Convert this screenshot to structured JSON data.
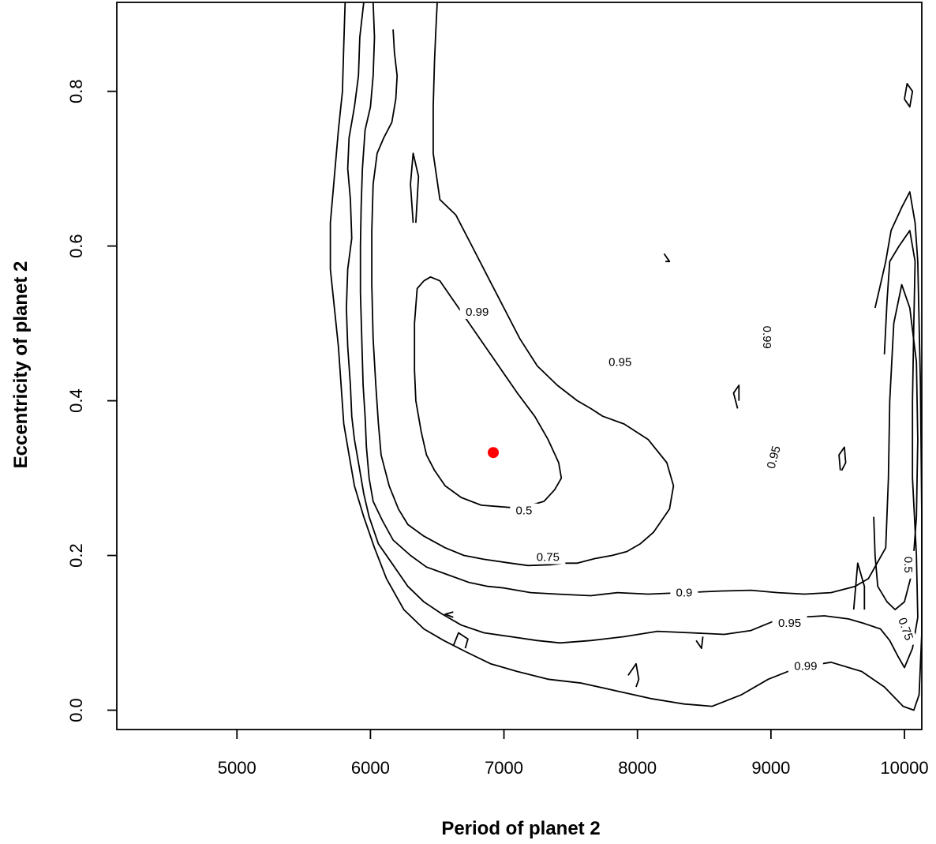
{
  "chart_data": {
    "type": "contour",
    "title": "",
    "xlabel": "Period of planet 2",
    "ylabel": "Eccentricity of planet 2",
    "xlim": [
      4100,
      10130
    ],
    "ylim": [
      -0.025,
      0.915
    ],
    "x_ticks": [
      5000,
      6000,
      7000,
      8000,
      9000,
      10000
    ],
    "x_tick_labels": [
      "5000",
      "6000",
      "7000",
      "8000",
      "9000",
      "10000"
    ],
    "y_ticks": [
      0.0,
      0.2,
      0.4,
      0.6,
      0.8
    ],
    "y_tick_labels": [
      "0.0",
      "0.2",
      "0.4",
      "0.6",
      "0.8"
    ],
    "grid": false,
    "levels": [
      0.5,
      0.75,
      0.9,
      0.95,
      0.99
    ],
    "level_labels": [
      "0.5",
      "0.75",
      "0.9",
      "0.95",
      "0.99"
    ],
    "best_fit_point": {
      "x": 6920,
      "y": 0.333,
      "color": "#ff0000"
    },
    "contour_line_color": "#000000",
    "contour_lines": [
      {
        "level": 0.5,
        "points": [
          [
            6400,
            0.555
          ],
          [
            6350,
            0.545
          ],
          [
            6330,
            0.5
          ],
          [
            6330,
            0.44
          ],
          [
            6340,
            0.4
          ],
          [
            6380,
            0.36
          ],
          [
            6420,
            0.33
          ],
          [
            6480,
            0.31
          ],
          [
            6560,
            0.29
          ],
          [
            6680,
            0.275
          ],
          [
            6830,
            0.265
          ],
          [
            7050,
            0.262
          ],
          [
            7200,
            0.265
          ],
          [
            7300,
            0.27
          ],
          [
            7380,
            0.285
          ],
          [
            7430,
            0.3
          ],
          [
            7410,
            0.32
          ],
          [
            7330,
            0.35
          ],
          [
            7230,
            0.38
          ],
          [
            7100,
            0.41
          ],
          [
            6980,
            0.44
          ],
          [
            6860,
            0.47
          ],
          [
            6740,
            0.5
          ],
          [
            6620,
            0.53
          ],
          [
            6520,
            0.555
          ],
          [
            6450,
            0.56
          ],
          [
            6400,
            0.555
          ]
        ]
      },
      {
        "level": 0.75,
        "points": [
          [
            6170,
            0.88
          ],
          [
            6180,
            0.85
          ],
          [
            6200,
            0.82
          ],
          [
            6190,
            0.79
          ],
          [
            6160,
            0.76
          ],
          [
            6100,
            0.74
          ],
          [
            6050,
            0.72
          ],
          [
            6020,
            0.68
          ],
          [
            6010,
            0.62
          ],
          [
            6010,
            0.55
          ],
          [
            6020,
            0.48
          ],
          [
            6040,
            0.42
          ],
          [
            6060,
            0.37
          ],
          [
            6080,
            0.33
          ],
          [
            6140,
            0.29
          ],
          [
            6210,
            0.26
          ],
          [
            6280,
            0.24
          ],
          [
            6400,
            0.225
          ],
          [
            6560,
            0.21
          ],
          [
            6700,
            0.2
          ],
          [
            6850,
            0.195
          ],
          [
            7050,
            0.19
          ],
          [
            7180,
            0.187
          ],
          [
            7350,
            0.188
          ],
          [
            7450,
            0.19
          ],
          [
            7550,
            0.19
          ],
          [
            7680,
            0.196
          ],
          [
            7810,
            0.2
          ],
          [
            7920,
            0.205
          ],
          [
            8020,
            0.215
          ],
          [
            8120,
            0.23
          ],
          [
            8240,
            0.26
          ],
          [
            8270,
            0.29
          ],
          [
            8220,
            0.32
          ],
          [
            8080,
            0.35
          ],
          [
            7900,
            0.37
          ],
          [
            7740,
            0.38
          ],
          [
            7650,
            0.39
          ],
          [
            7550,
            0.4
          ],
          [
            7400,
            0.42
          ],
          [
            7250,
            0.445
          ],
          [
            7120,
            0.48
          ],
          [
            7000,
            0.52
          ],
          [
            6880,
            0.56
          ],
          [
            6760,
            0.6
          ],
          [
            6640,
            0.64
          ],
          [
            6520,
            0.66
          ],
          [
            6470,
            0.72
          ],
          [
            6470,
            0.78
          ],
          [
            6480,
            0.84
          ],
          [
            6490,
            0.88
          ],
          [
            6500,
            0.915
          ]
        ]
      },
      {
        "level": 0.9,
        "points": [
          [
            6020,
            0.915
          ],
          [
            6030,
            0.87
          ],
          [
            6020,
            0.82
          ],
          [
            6000,
            0.78
          ],
          [
            5960,
            0.75
          ],
          [
            5940,
            0.7
          ],
          [
            5930,
            0.65
          ],
          [
            5925,
            0.6
          ],
          [
            5925,
            0.54
          ],
          [
            5935,
            0.48
          ],
          [
            5945,
            0.42
          ],
          [
            5960,
            0.38
          ],
          [
            5970,
            0.34
          ],
          [
            5990,
            0.3
          ],
          [
            6020,
            0.27
          ],
          [
            6090,
            0.245
          ],
          [
            6170,
            0.22
          ],
          [
            6300,
            0.2
          ],
          [
            6420,
            0.185
          ],
          [
            6580,
            0.175
          ],
          [
            6740,
            0.165
          ],
          [
            6880,
            0.16
          ],
          [
            7000,
            0.158
          ],
          [
            7200,
            0.152
          ],
          [
            7400,
            0.15
          ],
          [
            7650,
            0.148
          ],
          [
            7850,
            0.152
          ],
          [
            8080,
            0.15
          ],
          [
            8350,
            0.152
          ],
          [
            8620,
            0.154
          ],
          [
            8850,
            0.155
          ],
          [
            9050,
            0.152
          ],
          [
            9250,
            0.15
          ],
          [
            9450,
            0.152
          ],
          [
            9630,
            0.16
          ],
          [
            9730,
            0.17
          ],
          [
            9860,
            0.21
          ],
          [
            9880,
            0.3
          ],
          [
            9890,
            0.4
          ],
          [
            9920,
            0.5
          ],
          [
            9980,
            0.55
          ],
          [
            10040,
            0.52
          ],
          [
            10090,
            0.45
          ],
          [
            10100,
            0.35
          ],
          [
            10090,
            0.25
          ],
          [
            10060,
            0.18
          ],
          [
            10000,
            0.14
          ],
          [
            9930,
            0.13
          ],
          [
            9870,
            0.14
          ],
          [
            9800,
            0.16
          ],
          [
            9780,
            0.2
          ],
          [
            9770,
            0.25
          ]
        ]
      },
      {
        "level": 0.95,
        "points": [
          [
            5950,
            0.915
          ],
          [
            5920,
            0.87
          ],
          [
            5910,
            0.82
          ],
          [
            5880,
            0.78
          ],
          [
            5840,
            0.74
          ],
          [
            5830,
            0.7
          ],
          [
            5850,
            0.66
          ],
          [
            5860,
            0.61
          ],
          [
            5830,
            0.57
          ],
          [
            5820,
            0.52
          ],
          [
            5830,
            0.47
          ],
          [
            5850,
            0.42
          ],
          [
            5860,
            0.38
          ],
          [
            5880,
            0.35
          ],
          [
            5920,
            0.31
          ],
          [
            5950,
            0.28
          ],
          [
            5990,
            0.25
          ],
          [
            6060,
            0.215
          ],
          [
            6160,
            0.19
          ],
          [
            6280,
            0.16
          ],
          [
            6400,
            0.14
          ],
          [
            6530,
            0.125
          ],
          [
            6680,
            0.11
          ],
          [
            6850,
            0.1
          ],
          [
            7050,
            0.095
          ],
          [
            7250,
            0.09
          ],
          [
            7420,
            0.087
          ],
          [
            7650,
            0.09
          ],
          [
            7900,
            0.095
          ],
          [
            8150,
            0.102
          ],
          [
            8400,
            0.1
          ],
          [
            8650,
            0.098
          ],
          [
            8850,
            0.103
          ],
          [
            9020,
            0.115
          ],
          [
            9200,
            0.12
          ],
          [
            9400,
            0.122
          ],
          [
            9580,
            0.118
          ],
          [
            9700,
            0.112
          ],
          [
            9820,
            0.105
          ],
          [
            9890,
            0.09
          ],
          [
            9950,
            0.07
          ],
          [
            10000,
            0.055
          ],
          [
            10060,
            0.08
          ],
          [
            10100,
            0.12
          ],
          [
            10090,
            0.2
          ],
          [
            10060,
            0.3
          ],
          [
            10060,
            0.4
          ],
          [
            10070,
            0.5
          ],
          [
            10080,
            0.58
          ],
          [
            10040,
            0.62
          ],
          [
            9960,
            0.6
          ],
          [
            9890,
            0.58
          ],
          [
            9870,
            0.53
          ],
          [
            9850,
            0.46
          ]
        ]
      },
      {
        "level": 0.99,
        "points": [
          [
            5810,
            0.915
          ],
          [
            5800,
            0.86
          ],
          [
            5790,
            0.8
          ],
          [
            5760,
            0.75
          ],
          [
            5730,
            0.69
          ],
          [
            5700,
            0.63
          ],
          [
            5700,
            0.57
          ],
          [
            5730,
            0.52
          ],
          [
            5760,
            0.47
          ],
          [
            5780,
            0.42
          ],
          [
            5800,
            0.37
          ],
          [
            5840,
            0.33
          ],
          [
            5880,
            0.29
          ],
          [
            5950,
            0.25
          ],
          [
            6030,
            0.21
          ],
          [
            6120,
            0.17
          ],
          [
            6250,
            0.13
          ],
          [
            6400,
            0.105
          ],
          [
            6550,
            0.09
          ],
          [
            6720,
            0.075
          ],
          [
            6900,
            0.06
          ],
          [
            7100,
            0.05
          ],
          [
            7330,
            0.04
          ],
          [
            7580,
            0.035
          ],
          [
            7840,
            0.025
          ],
          [
            8100,
            0.015
          ],
          [
            8350,
            0.008
          ],
          [
            8560,
            0.005
          ],
          [
            8780,
            0.02
          ],
          [
            8980,
            0.04
          ],
          [
            9200,
            0.055
          ],
          [
            9450,
            0.062
          ],
          [
            9680,
            0.05
          ],
          [
            9850,
            0.03
          ],
          [
            9990,
            0.005
          ],
          [
            10070,
            0.0
          ],
          [
            10110,
            0.02
          ],
          [
            10130,
            0.1
          ],
          [
            10130,
            0.25
          ],
          [
            10120,
            0.42
          ],
          [
            10100,
            0.58
          ],
          [
            10080,
            0.63
          ],
          [
            10040,
            0.67
          ],
          [
            9980,
            0.65
          ],
          [
            9900,
            0.62
          ],
          [
            9860,
            0.58
          ],
          [
            9820,
            0.55
          ],
          [
            9780,
            0.52
          ]
        ]
      }
    ],
    "contour_label_positions": [
      {
        "text": "0.5",
        "x": 7150,
        "y": 0.258,
        "rotate": 0
      },
      {
        "text": "0.75",
        "x": 7330,
        "y": 0.198,
        "rotate": 0
      },
      {
        "text": "0.9",
        "x": 8350,
        "y": 0.152,
        "rotate": 0
      },
      {
        "text": "0.95",
        "x": 7870,
        "y": 0.45,
        "rotate": 0
      },
      {
        "text": "0.95",
        "x": 9020,
        "y": 0.327,
        "rotate": -75
      },
      {
        "text": "0.95",
        "x": 9140,
        "y": 0.113,
        "rotate": 0
      },
      {
        "text": "0.99",
        "x": 6800,
        "y": 0.515,
        "rotate": 0
      },
      {
        "text": "0.99",
        "x": 8970,
        "y": 0.482,
        "rotate": 90
      },
      {
        "text": "0.99",
        "x": 9260,
        "y": 0.057,
        "rotate": 0
      },
      {
        "text": "0.5",
        "x": 10030,
        "y": 0.188,
        "rotate": 90
      },
      {
        "text": "0.75",
        "x": 10010,
        "y": 0.105,
        "rotate": 70
      }
    ],
    "small_islands": [
      {
        "level": 0.9,
        "points": [
          [
            6320,
            0.63
          ],
          [
            6300,
            0.68
          ],
          [
            6320,
            0.72
          ],
          [
            6360,
            0.69
          ],
          [
            6340,
            0.63
          ]
        ]
      },
      {
        "level": 0.99,
        "points": [
          [
            10000,
            0.79
          ],
          [
            10020,
            0.81
          ],
          [
            10060,
            0.8
          ],
          [
            10040,
            0.78
          ],
          [
            10000,
            0.79
          ]
        ]
      },
      {
        "level": 0.99,
        "points": [
          [
            8200,
            0.59
          ],
          [
            8240,
            0.58
          ],
          [
            8210,
            0.58
          ]
        ]
      },
      {
        "level": 0.95,
        "points": [
          [
            8750,
            0.39
          ],
          [
            8720,
            0.41
          ],
          [
            8760,
            0.42
          ],
          [
            8760,
            0.4
          ]
        ]
      },
      {
        "level": 0.95,
        "points": [
          [
            9520,
            0.31
          ],
          [
            9510,
            0.33
          ],
          [
            9550,
            0.34
          ],
          [
            9560,
            0.32
          ],
          [
            9530,
            0.31
          ]
        ]
      },
      {
        "level": 0.9,
        "points": [
          [
            9620,
            0.13
          ],
          [
            9650,
            0.19
          ],
          [
            9700,
            0.16
          ],
          [
            9700,
            0.13
          ]
        ]
      },
      {
        "level": 0.99,
        "points": [
          [
            6620,
            0.12
          ],
          [
            6560,
            0.124
          ],
          [
            6620,
            0.127
          ]
        ]
      },
      {
        "level": 0.99,
        "points": [
          [
            6620,
            0.083
          ],
          [
            6660,
            0.1
          ],
          [
            6730,
            0.092
          ],
          [
            6710,
            0.08
          ]
        ]
      },
      {
        "level": 0.99,
        "points": [
          [
            7930,
            0.045
          ],
          [
            7990,
            0.06
          ],
          [
            8010,
            0.04
          ],
          [
            7990,
            0.03
          ]
        ]
      },
      {
        "level": 0.99,
        "points": [
          [
            8440,
            0.09
          ],
          [
            8480,
            0.08
          ],
          [
            8490,
            0.095
          ]
        ]
      }
    ]
  }
}
